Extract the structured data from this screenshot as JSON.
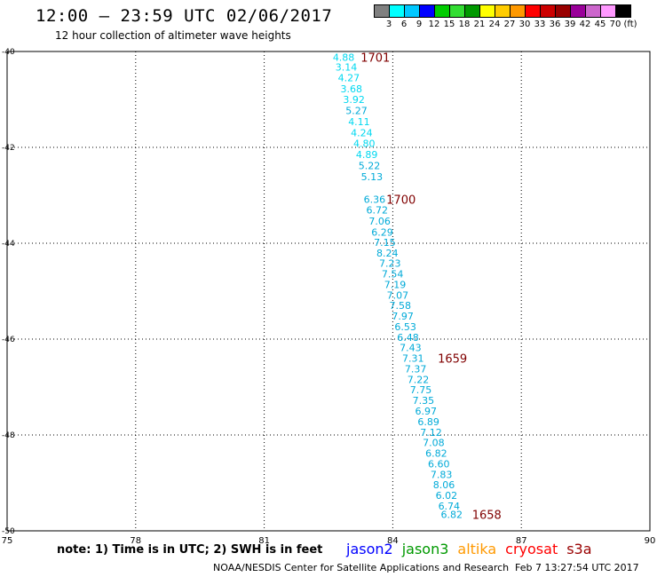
{
  "header": {
    "title": "12:00 – 23:59 UTC 02/06/2017",
    "subtitle": "12 hour collection of altimeter wave heights"
  },
  "color_scale": {
    "colors": [
      "#808080",
      "#00ffff",
      "#00c8ff",
      "#0000ff",
      "#00cc00",
      "#33dd33",
      "#009900",
      "#ffff00",
      "#ffcc00",
      "#ff9900",
      "#ff0000",
      "#cc0000",
      "#990000",
      "#990099",
      "#cc66cc",
      "#ff99ff",
      "#000000"
    ],
    "labels": [
      "3",
      "6",
      "9",
      "12",
      "15",
      "18",
      "21",
      "24",
      "27",
      "30",
      "33",
      "36",
      "39",
      "42",
      "45",
      "70",
      "(ft)"
    ]
  },
  "map": {
    "lon_range": [
      75,
      90
    ],
    "lat_range": [
      -40,
      -50
    ],
    "lon_ticks": [
      "75",
      "78",
      "81",
      "84",
      "87",
      "90"
    ],
    "lat_ticks": [
      "-40",
      "-42",
      "-44",
      "-46",
      "-48",
      "-50"
    ],
    "grid": "dotted"
  },
  "observations": [
    {
      "lon": 82.6,
      "lat": -40.12,
      "label": "4.88",
      "color": "#00d8f0"
    },
    {
      "lon": 82.66,
      "lat": -40.32,
      "label": "3.14",
      "color": "#00d8f0"
    },
    {
      "lon": 82.72,
      "lat": -40.55,
      "label": "4.27",
      "color": "#00d8f0"
    },
    {
      "lon": 82.78,
      "lat": -40.78,
      "label": "3.68",
      "color": "#00d8f0"
    },
    {
      "lon": 82.84,
      "lat": -41.0,
      "label": "3.92",
      "color": "#00d8f0"
    },
    {
      "lon": 82.9,
      "lat": -41.23,
      "label": "5.27",
      "color": "#00aad8"
    },
    {
      "lon": 82.96,
      "lat": -41.46,
      "label": "4.11",
      "color": "#00d8f0"
    },
    {
      "lon": 83.02,
      "lat": -41.69,
      "label": "4.24",
      "color": "#00d8f0"
    },
    {
      "lon": 83.08,
      "lat": -41.92,
      "label": "4.80",
      "color": "#00d8f0"
    },
    {
      "lon": 83.14,
      "lat": -42.15,
      "label": "4.89",
      "color": "#00d8f0"
    },
    {
      "lon": 83.2,
      "lat": -42.38,
      "label": "5.22",
      "color": "#00aad8"
    },
    {
      "lon": 83.26,
      "lat": -42.61,
      "label": "5.13",
      "color": "#00aad8"
    },
    {
      "lon": 83.32,
      "lat": -43.08,
      "label": "6.36",
      "color": "#00aad8"
    },
    {
      "lon": 83.38,
      "lat": -43.31,
      "label": "6.72",
      "color": "#00aad8"
    },
    {
      "lon": 83.44,
      "lat": -43.54,
      "label": "7.06",
      "color": "#00aad8"
    },
    {
      "lon": 83.5,
      "lat": -43.77,
      "label": "6.29",
      "color": "#00aad8"
    },
    {
      "lon": 83.56,
      "lat": -43.98,
      "label": "7.15",
      "color": "#00aad8"
    },
    {
      "lon": 83.62,
      "lat": -44.2,
      "label": "8.24",
      "color": "#00aad8"
    },
    {
      "lon": 83.68,
      "lat": -44.42,
      "label": "7.23",
      "color": "#00aad8"
    },
    {
      "lon": 83.74,
      "lat": -44.64,
      "label": "7.54",
      "color": "#00aad8"
    },
    {
      "lon": 83.8,
      "lat": -44.86,
      "label": "7.19",
      "color": "#00aad8"
    },
    {
      "lon": 83.86,
      "lat": -45.08,
      "label": "7.07",
      "color": "#00aad8"
    },
    {
      "lon": 83.92,
      "lat": -45.3,
      "label": "7.58",
      "color": "#00aad8"
    },
    {
      "lon": 83.98,
      "lat": -45.52,
      "label": "7.97",
      "color": "#00aad8"
    },
    {
      "lon": 84.04,
      "lat": -45.74,
      "label": "6.53",
      "color": "#00aad8"
    },
    {
      "lon": 84.1,
      "lat": -45.96,
      "label": "6.48",
      "color": "#00aad8"
    },
    {
      "lon": 84.16,
      "lat": -46.18,
      "label": "7.43",
      "color": "#00aad8"
    },
    {
      "lon": 84.22,
      "lat": -46.4,
      "label": "7.31",
      "color": "#00aad8"
    },
    {
      "lon": 84.28,
      "lat": -46.62,
      "label": "7.37",
      "color": "#00aad8"
    },
    {
      "lon": 84.34,
      "lat": -46.84,
      "label": "7.22",
      "color": "#00aad8"
    },
    {
      "lon": 84.4,
      "lat": -47.06,
      "label": "7.75",
      "color": "#00aad8"
    },
    {
      "lon": 84.46,
      "lat": -47.28,
      "label": "7.35",
      "color": "#00aad8"
    },
    {
      "lon": 84.52,
      "lat": -47.5,
      "label": "6.97",
      "color": "#00aad8"
    },
    {
      "lon": 84.58,
      "lat": -47.72,
      "label": "6.89",
      "color": "#00aad8"
    },
    {
      "lon": 84.64,
      "lat": -47.94,
      "label": "7.12",
      "color": "#00aad8"
    },
    {
      "lon": 84.7,
      "lat": -48.16,
      "label": "7.08",
      "color": "#00aad8"
    },
    {
      "lon": 84.76,
      "lat": -48.38,
      "label": "6.82",
      "color": "#00aad8"
    },
    {
      "lon": 84.82,
      "lat": -48.6,
      "label": "6.60",
      "color": "#00aad8"
    },
    {
      "lon": 84.88,
      "lat": -48.82,
      "label": "7.83",
      "color": "#00aad8"
    },
    {
      "lon": 84.94,
      "lat": -49.04,
      "label": "8.06",
      "color": "#00aad8"
    },
    {
      "lon": 85.0,
      "lat": -49.26,
      "label": "6.02",
      "color": "#00aad8"
    },
    {
      "lon": 85.06,
      "lat": -49.48,
      "label": "6.74",
      "color": "#00aad8"
    },
    {
      "lon": 85.12,
      "lat": -49.66,
      "label": "6.82",
      "color": "#00aad8"
    }
  ],
  "time_labels": [
    {
      "lon": 83.25,
      "lat": -40.12,
      "label": "1701"
    },
    {
      "lon": 83.85,
      "lat": -43.08,
      "label": "1700"
    },
    {
      "lon": 85.05,
      "lat": -46.4,
      "label": "1659"
    },
    {
      "lon": 85.85,
      "lat": -49.66,
      "label": "1658"
    }
  ],
  "footer": {
    "note": "note:  1) Time is in UTC;  2) SWH is in feet",
    "satellites": [
      {
        "name": "jason2",
        "color": "#0000ff"
      },
      {
        "name": "jason3",
        "color": "#009900"
      },
      {
        "name": "altika",
        "color": "#ff9900"
      },
      {
        "name": "cryosat",
        "color": "#ff0000"
      },
      {
        "name": "s3a",
        "color": "#990000"
      }
    ],
    "credit": "NOAA/NESDIS Center for Satellite Applications and Research",
    "timestamp": "Feb  7 13:27:54 UTC 2017"
  }
}
